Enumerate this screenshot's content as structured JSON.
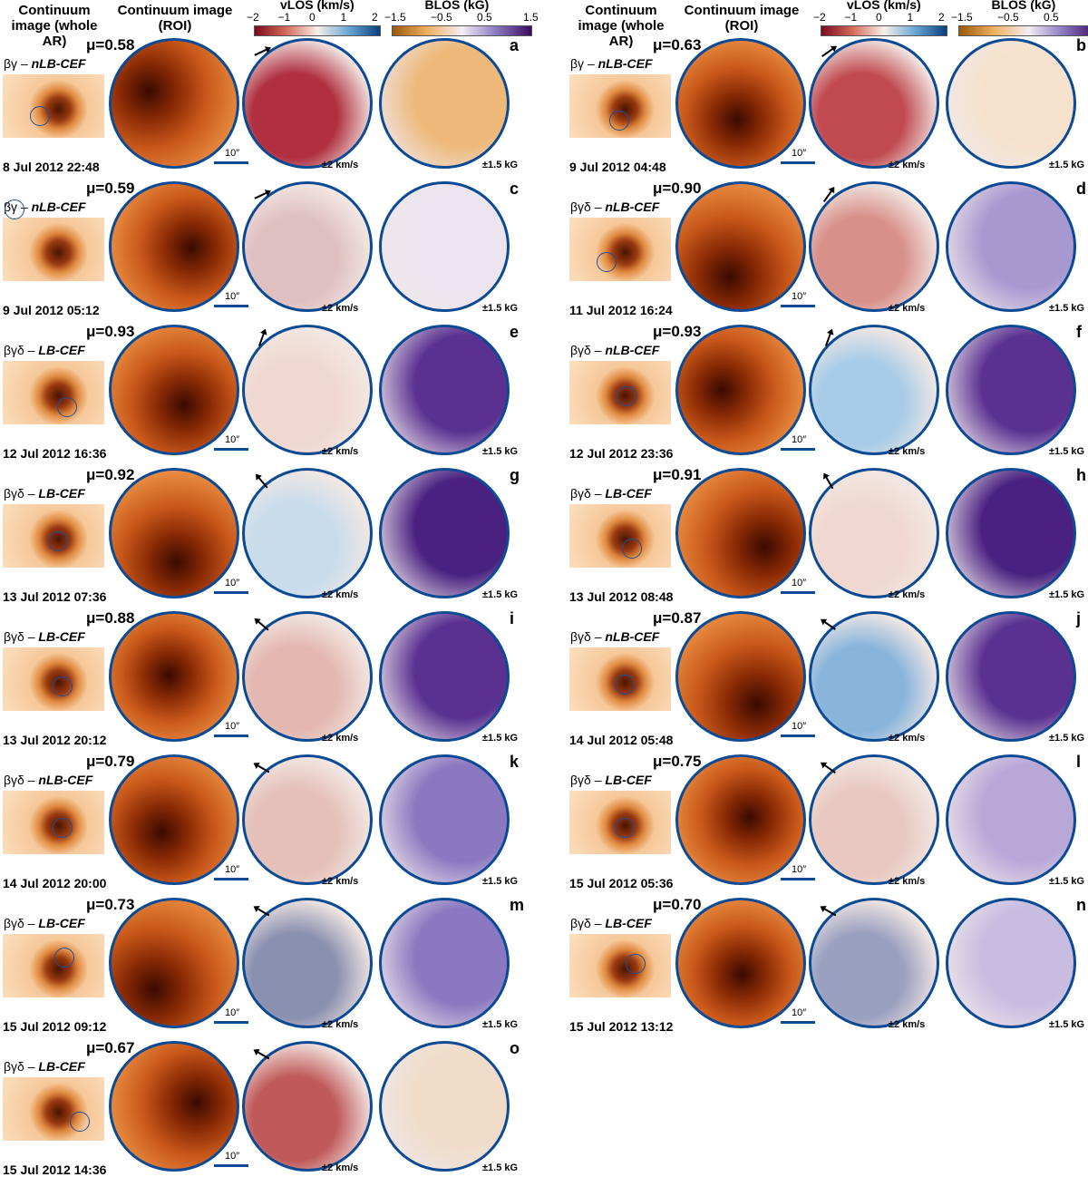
{
  "headers": {
    "whole_ar": "Continuum image (whole AR)",
    "roi": "Continuum image (ROI)"
  },
  "colorbars": {
    "vlos": {
      "label": "vLOS (km/s)",
      "ticks": [
        "−2",
        "−1",
        "0",
        "1",
        "2"
      ],
      "colors": [
        "#7a0a1e",
        "#d66a5a",
        "#f7efe9",
        "#6aa6d4",
        "#0a3f80"
      ]
    },
    "blos": {
      "label": "BLOS (kG)",
      "ticks": [
        "−1.5",
        "−0.5",
        "0.5",
        "1.5"
      ],
      "colors": [
        "#9a5a0a",
        "#f0b060",
        "#f3eef4",
        "#8a78c0",
        "#3a0a60"
      ]
    }
  },
  "scale_label": "10″",
  "vlos_range": "±2 km/s",
  "blos_range": "±1.5 kG",
  "mu_prefix": "μ=",
  "panels": [
    {
      "letter": "a",
      "mu": "0.58",
      "class_a": "βγ – ",
      "class_b": "nLB-CEF",
      "date": "8 Jul 2012 22:48",
      "blos_color": "#eeb878",
      "vlos_color": "#b03040"
    },
    {
      "letter": "b",
      "mu": "0.63",
      "class_a": "βγ – ",
      "class_b": "nLB-CEF",
      "date": "9 Jul 2012 04:48",
      "blos_color": "#f6e2cc",
      "vlos_color": "#c04a50"
    },
    {
      "letter": "c",
      "mu": "0.59",
      "class_a": "βγ – ",
      "class_b": "nLB-CEF",
      "date": "9 Jul 2012 05:12",
      "blos_color": "#ece4ee",
      "vlos_color": "#dfc0c0"
    },
    {
      "letter": "d",
      "mu": "0.90",
      "class_a": "βγδ – ",
      "class_b": "nLB-CEF",
      "date": "11 Jul 2012 16:24",
      "blos_color": "#a898d0",
      "vlos_color": "#d8908a"
    },
    {
      "letter": "e",
      "mu": "0.93",
      "class_a": "βγδ – ",
      "class_b": "LB-CEF",
      "date": "12 Jul 2012 16:36",
      "blos_color": "#5a3090",
      "vlos_color": "#f0d8d0"
    },
    {
      "letter": "f",
      "mu": "0.93",
      "class_a": "βγδ – ",
      "class_b": "nLB-CEF",
      "date": "12 Jul 2012 23:36",
      "blos_color": "#5a3090",
      "vlos_color": "#a8cce8"
    },
    {
      "letter": "g",
      "mu": "0.92",
      "class_a": "βγδ – ",
      "class_b": "LB-CEF",
      "date": "13 Jul 2012 07:36",
      "blos_color": "#4a2080",
      "vlos_color": "#c8dcec"
    },
    {
      "letter": "h",
      "mu": "0.91",
      "class_a": "βγδ – ",
      "class_b": "LB-CEF",
      "date": "13 Jul 2012 08:48",
      "blos_color": "#4a2080",
      "vlos_color": "#f0d8d0"
    },
    {
      "letter": "i",
      "mu": "0.88",
      "class_a": "βγδ – ",
      "class_b": "LB-CEF",
      "date": "13 Jul 2012 20:12",
      "blos_color": "#5a3090",
      "vlos_color": "#e4b8b0"
    },
    {
      "letter": "j",
      "mu": "0.87",
      "class_a": "βγδ – ",
      "class_b": "nLB-CEF",
      "date": "14 Jul 2012 05:48",
      "blos_color": "#5a3090",
      "vlos_color": "#88b4dc"
    },
    {
      "letter": "k",
      "mu": "0.79",
      "class_a": "βγδ – ",
      "class_b": "nLB-CEF",
      "date": "14 Jul 2012 20:00",
      "blos_color": "#8a78c0",
      "vlos_color": "#e4c0b8"
    },
    {
      "letter": "l",
      "mu": "0.75",
      "class_a": "βγδ – ",
      "class_b": "LB-CEF",
      "date": "15 Jul 2012 05:36",
      "blos_color": "#b8a8d8",
      "vlos_color": "#e8c8c0"
    },
    {
      "letter": "m",
      "mu": "0.73",
      "class_a": "βγδ – ",
      "class_b": "LB-CEF",
      "date": "15 Jul 2012 09:12",
      "blos_color": "#8a78c0",
      "vlos_color": "#8a90b0"
    },
    {
      "letter": "n",
      "mu": "0.70",
      "class_a": "βγδ – ",
      "class_b": "LB-CEF",
      "date": "15 Jul 2012 13:12",
      "blos_color": "#c8bce0",
      "vlos_color": "#9aa0c0"
    },
    {
      "letter": "o",
      "mu": "0.67",
      "class_a": "βγδ – ",
      "class_b": "LB-CEF",
      "date": "15 Jul 2012 14:36",
      "blos_color": "#f0dcc8",
      "vlos_color": "#c05a5a"
    }
  ]
}
